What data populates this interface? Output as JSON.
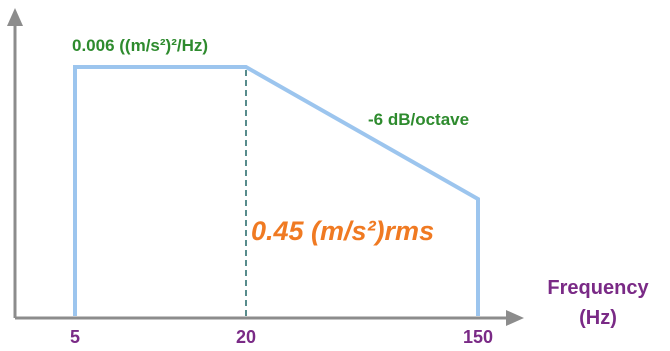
{
  "diagram": {
    "plateau_label": "0.006 ((m/s²)²/Hz)",
    "slope_label": "-6 dB/octave",
    "rms_label": "0.45 (m/s²)rms",
    "x_axis_label_line1": "Frequency",
    "x_axis_label_line2": "(Hz)",
    "ticks": [
      "5",
      "20",
      "150"
    ]
  },
  "colors": {
    "profile": "#9cc5ee",
    "axis": "#8c8c8c",
    "green_text": "#2e8b2e",
    "purple_text": "#7a2a86",
    "orange_text": "#f07a22",
    "dashed": "#2f6f6f"
  }
}
